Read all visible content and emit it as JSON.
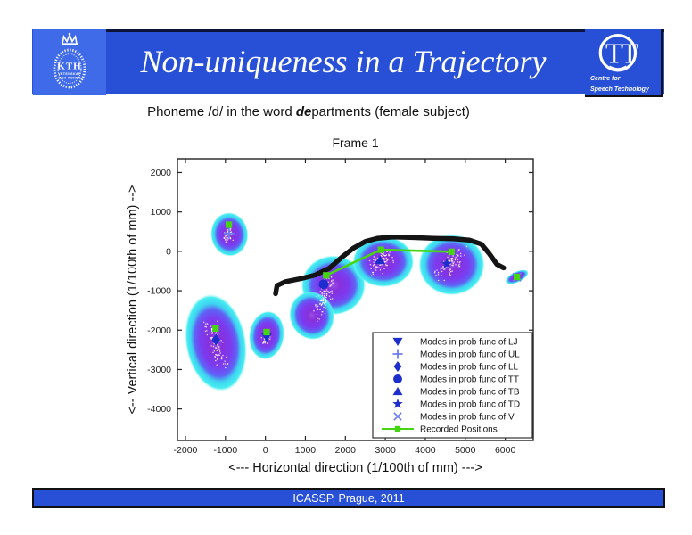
{
  "slide": {
    "header": {
      "title": "Non-uniqueness in a Trajectory",
      "bar_color": "#2850d7",
      "kth_logo": {
        "text": "KTH",
        "line1": "VETENSKAP",
        "line2": "OCH KONST"
      },
      "tt_logo": {
        "monogram": "TT",
        "line1": "Centre for",
        "line2": "Speech Technology"
      }
    },
    "subtitle": {
      "prefix": "Phoneme /d/ in the word ",
      "emphasis": "de",
      "suffix": "partments (female subject)"
    },
    "footer": {
      "text": "ICASSP, Prague, 2011"
    }
  },
  "chart_data": {
    "type": "scatter",
    "title": "Frame 1",
    "xlabel": "<--- Horizontal direction (1/100th of mm) --->",
    "ylabel": "<-- Vertical direction (1/100th of mm) -->",
    "xlim": [
      -2200,
      6700
    ],
    "ylim": [
      -4800,
      2350
    ],
    "xticks": [
      -2000,
      -1000,
      0,
      1000,
      2000,
      3000,
      4000,
      5000,
      6000
    ],
    "yticks": [
      2000,
      1000,
      0,
      -1000,
      -2000,
      -3000,
      -4000
    ],
    "grid": false,
    "legend_position": "lower-right",
    "blob_gradient": [
      [
        0,
        "#9b4fe3",
        1
      ],
      [
        0.2,
        "#8730dc",
        1
      ],
      [
        0.5,
        "#7b3cf0",
        1
      ],
      [
        0.68,
        "#5f63f4",
        1
      ],
      [
        0.8,
        "#3fd2f1",
        1
      ],
      [
        0.93,
        "#45eef0",
        1
      ],
      [
        1,
        "#b8f8f8",
        0
      ]
    ],
    "density_blobs": [
      {
        "cx": -900,
        "cy": 430,
        "rx": 470,
        "ry": 560,
        "rot": -6
      },
      {
        "cx": -1240,
        "cy": -2320,
        "rx": 760,
        "ry": 1250,
        "rot": -10
      },
      {
        "cx": 30,
        "cy": -2130,
        "rx": 440,
        "ry": 620,
        "rot": 8
      },
      {
        "cx": 1700,
        "cy": -860,
        "rx": 810,
        "ry": 760,
        "rot": 0
      },
      {
        "cx": 1160,
        "cy": -1630,
        "rx": 560,
        "ry": 620,
        "rot": -20
      },
      {
        "cx": 2950,
        "cy": -260,
        "rx": 770,
        "ry": 650,
        "rot": 0
      },
      {
        "cx": 4660,
        "cy": -340,
        "rx": 830,
        "ry": 780,
        "rot": 0
      },
      {
        "cx": 6290,
        "cy": -650,
        "rx": 310,
        "ry": 135,
        "rot": -25
      }
    ],
    "speckle_streaks": [
      {
        "x1": -960,
        "y1": 250,
        "x2": -880,
        "y2": 560,
        "spread": 130,
        "n": 40
      },
      {
        "x1": -1400,
        "y1": -1800,
        "x2": -1060,
        "y2": -2880,
        "spread": 200,
        "n": 90
      },
      {
        "x1": -10,
        "y1": -2330,
        "x2": 70,
        "y2": -2130,
        "spread": 110,
        "n": 30
      },
      {
        "x1": 1310,
        "y1": -1620,
        "x2": 1650,
        "y2": -700,
        "spread": 210,
        "n": 100
      },
      {
        "x1": 2700,
        "y1": -430,
        "x2": 3080,
        "y2": -90,
        "spread": 240,
        "n": 80
      },
      {
        "x1": 4380,
        "y1": -560,
        "x2": 4820,
        "y2": -60,
        "spread": 250,
        "n": 90
      }
    ],
    "black_trajectory": [
      [
        255,
        -1075
      ],
      [
        290,
        -870
      ],
      [
        500,
        -770
      ],
      [
        900,
        -690
      ],
      [
        1250,
        -600
      ],
      [
        1600,
        -430
      ],
      [
        1900,
        -160
      ],
      [
        2200,
        80
      ],
      [
        2500,
        250
      ],
      [
        2800,
        330
      ],
      [
        3200,
        365
      ],
      [
        3700,
        350
      ],
      [
        4200,
        330
      ],
      [
        4700,
        320
      ],
      [
        5100,
        285
      ],
      [
        5400,
        185
      ],
      [
        5600,
        -60
      ],
      [
        5790,
        -330
      ],
      [
        5960,
        -420
      ]
    ],
    "series": [
      {
        "name": "Modes in prob func of LJ",
        "marker": "triangle-down",
        "color": "#1e2ecc",
        "points": [
          [
            30,
            -2180
          ]
        ]
      },
      {
        "name": "Modes in prob func of UL",
        "marker": "plus",
        "color": "#6b7df0",
        "points": [
          [
            -910,
            455
          ]
        ]
      },
      {
        "name": "Modes in prob func of LL",
        "marker": "diamond",
        "color": "#1e2ecc",
        "points": [
          [
            -1235,
            -2245
          ]
        ]
      },
      {
        "name": "Modes in prob func of TT",
        "marker": "circle",
        "color": "#1e2ecc",
        "points": [
          [
            1455,
            -835
          ]
        ]
      },
      {
        "name": "Modes in prob func of TB",
        "marker": "triangle-up",
        "color": "#1e2ecc",
        "points": [
          [
            2865,
            -225
          ]
        ]
      },
      {
        "name": "Modes in prob func of TD",
        "marker": "star",
        "color": "#1e2ecc",
        "points": [
          [
            4540,
            -315
          ]
        ]
      },
      {
        "name": "Modes in prob func of V",
        "marker": "x",
        "color": "#6b7df0",
        "points": [
          [
            6290,
            -655
          ]
        ]
      },
      {
        "name": "Recorded Positions",
        "marker": "square",
        "color": "#47d513",
        "line": true,
        "points": [
          [
            -915,
            675
          ],
          [
            -1245,
            -1960
          ],
          [
            30,
            -2050
          ],
          [
            1520,
            -610
          ],
          [
            2890,
            40
          ],
          [
            4655,
            -10
          ],
          [
            6290,
            -650
          ]
        ],
        "connected_points": [
          [
            1520,
            -610
          ],
          [
            2890,
            40
          ],
          [
            4655,
            -10
          ]
        ]
      }
    ],
    "colors": {
      "trajectory_black": "#141414",
      "recorded_green": "#47d513",
      "mode_blue": "#1e2ecc",
      "mode_light_blue": "#6b7df0"
    }
  }
}
